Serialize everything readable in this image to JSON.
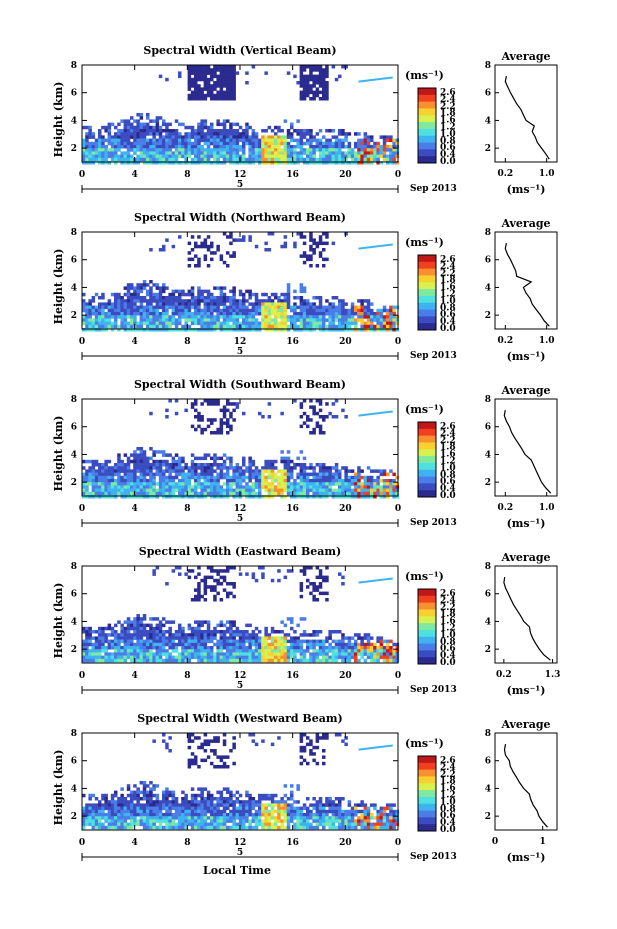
{
  "figure": {
    "xlabel": "Local Time",
    "date_label": "Sep 2013",
    "day_marker": "5",
    "avg_title": "Average",
    "avg_xlabel": "(ms⁻¹)",
    "colorbar_unit": "(ms⁻¹)",
    "colorbar_ticks": [
      "2.6",
      "2.4",
      "2.2",
      "1.8",
      "1.6",
      "1.2",
      "1.0",
      "0.8",
      "0.6",
      "0.4",
      "0.0"
    ],
    "colors": [
      "#2b2b8f",
      "#3b4cc0",
      "#4a7de8",
      "#3fb3f0",
      "#4fe0e0",
      "#7fe9a0",
      "#d8f050",
      "#f8d030",
      "#f89030",
      "#f04020",
      "#c01818"
    ]
  },
  "chart_data": [
    {
      "type": "heatmap",
      "title": "Spectral Width (Vertical Beam)",
      "ylabel": "Height (km)",
      "xlabel": "",
      "x_ticks": [
        "0",
        "4",
        "8",
        "12",
        "16",
        "20",
        "0"
      ],
      "y_ticks": [
        "2",
        "4",
        "6",
        "8"
      ],
      "xlim": [
        0,
        24
      ],
      "ylim": [
        1,
        8
      ],
      "avg_profile": {
        "type": "line",
        "x_ticks": [
          "0.2",
          "1.0"
        ],
        "y_ticks": [
          "2",
          "4",
          "6",
          "8"
        ],
        "xlim": [
          0,
          1.2
        ],
        "ylim": [
          1,
          8
        ],
        "height": [
          1.2,
          1.6,
          2.0,
          2.4,
          2.8,
          3.2,
          3.6,
          4.0,
          4.4,
          4.8,
          5.2,
          5.6,
          6.0,
          6.4,
          6.8,
          7.2
        ],
        "value": [
          1.05,
          0.98,
          0.9,
          0.82,
          0.78,
          0.72,
          0.76,
          0.6,
          0.55,
          0.5,
          0.42,
          0.36,
          0.3,
          0.25,
          0.2,
          0.22
        ]
      }
    },
    {
      "type": "heatmap",
      "title": "Spectral Width (Northward Beam)",
      "ylabel": "Height (km)",
      "xlabel": "",
      "x_ticks": [
        "0",
        "4",
        "8",
        "12",
        "16",
        "20",
        "0"
      ],
      "y_ticks": [
        "2",
        "4",
        "6",
        "8"
      ],
      "xlim": [
        0,
        24
      ],
      "ylim": [
        1,
        8
      ],
      "avg_profile": {
        "type": "line",
        "x_ticks": [
          "0.2",
          "1.0"
        ],
        "y_ticks": [
          "2",
          "4",
          "6",
          "8"
        ],
        "xlim": [
          0,
          1.2
        ],
        "ylim": [
          1,
          8
        ],
        "height": [
          1.2,
          1.6,
          2.0,
          2.4,
          2.8,
          3.2,
          3.6,
          4.0,
          4.4,
          4.8,
          5.2,
          5.6,
          6.0,
          6.4,
          6.8,
          7.2
        ],
        "value": [
          1.05,
          0.95,
          0.88,
          0.8,
          0.72,
          0.68,
          0.6,
          0.55,
          0.7,
          0.42,
          0.4,
          0.35,
          0.3,
          0.24,
          0.2,
          0.22
        ]
      }
    },
    {
      "type": "heatmap",
      "title": "Spectral Width (Southward Beam)",
      "ylabel": "Height (km)",
      "xlabel": "",
      "x_ticks": [
        "0",
        "4",
        "8",
        "12",
        "16",
        "20",
        "0"
      ],
      "y_ticks": [
        "2",
        "4",
        "6",
        "8"
      ],
      "xlim": [
        0,
        24
      ],
      "ylim": [
        1,
        8
      ],
      "avg_profile": {
        "type": "line",
        "x_ticks": [
          "0.2",
          "1.0"
        ],
        "y_ticks": [
          "2",
          "4",
          "6",
          "8"
        ],
        "xlim": [
          0,
          1.2
        ],
        "ylim": [
          1,
          8
        ],
        "height": [
          1.2,
          1.6,
          2.0,
          2.4,
          2.8,
          3.2,
          3.6,
          4.0,
          4.4,
          4.8,
          5.2,
          5.6,
          6.0,
          6.4,
          6.8,
          7.2
        ],
        "value": [
          1.08,
          0.98,
          0.9,
          0.85,
          0.8,
          0.75,
          0.7,
          0.58,
          0.52,
          0.45,
          0.38,
          0.32,
          0.28,
          0.22,
          0.18,
          0.2
        ]
      }
    },
    {
      "type": "heatmap",
      "title": "Spectral Width (Eastward Beam)",
      "ylabel": "Height (km)",
      "xlabel": "",
      "x_ticks": [
        "0",
        "4",
        "8",
        "12",
        "16",
        "20",
        "0"
      ],
      "y_ticks": [
        "2",
        "4",
        "6",
        "8"
      ],
      "xlim": [
        0,
        24
      ],
      "ylim": [
        1,
        8
      ],
      "avg_profile": {
        "type": "line",
        "x_ticks": [
          "0.2",
          "1.3"
        ],
        "y_ticks": [
          "2",
          "4",
          "6",
          "8"
        ],
        "xlim": [
          0,
          1.4
        ],
        "ylim": [
          1,
          8
        ],
        "height": [
          1.2,
          1.6,
          2.0,
          2.4,
          2.8,
          3.2,
          3.6,
          4.0,
          4.4,
          4.8,
          5.2,
          5.6,
          6.0,
          6.4,
          6.8,
          7.2
        ],
        "value": [
          1.25,
          1.1,
          1.0,
          0.92,
          0.85,
          0.8,
          0.78,
          0.65,
          0.58,
          0.5,
          0.42,
          0.36,
          0.3,
          0.24,
          0.2,
          0.22
        ]
      }
    },
    {
      "type": "heatmap",
      "title": "Spectral Width (Westward Beam)",
      "ylabel": "Height (km)",
      "xlabel": "Local Time",
      "x_ticks": [
        "0",
        "4",
        "8",
        "12",
        "16",
        "20",
        "0"
      ],
      "y_ticks": [
        "2",
        "4",
        "6",
        "8"
      ],
      "xlim": [
        0,
        24
      ],
      "ylim": [
        1,
        8
      ],
      "avg_profile": {
        "type": "line",
        "x_ticks": [
          "0",
          "1"
        ],
        "y_ticks": [
          "2",
          "4",
          "6",
          "8"
        ],
        "xlim": [
          0,
          1.3
        ],
        "ylim": [
          1,
          8
        ],
        "height": [
          1.2,
          1.6,
          2.0,
          2.4,
          2.8,
          3.2,
          3.6,
          4.0,
          4.4,
          4.8,
          5.2,
          5.6,
          6.0,
          6.4,
          6.8,
          7.2
        ],
        "value": [
          1.1,
          1.0,
          0.92,
          0.88,
          0.8,
          0.75,
          0.72,
          0.6,
          0.52,
          0.45,
          0.38,
          0.32,
          0.3,
          0.22,
          0.2,
          0.22
        ]
      }
    }
  ]
}
